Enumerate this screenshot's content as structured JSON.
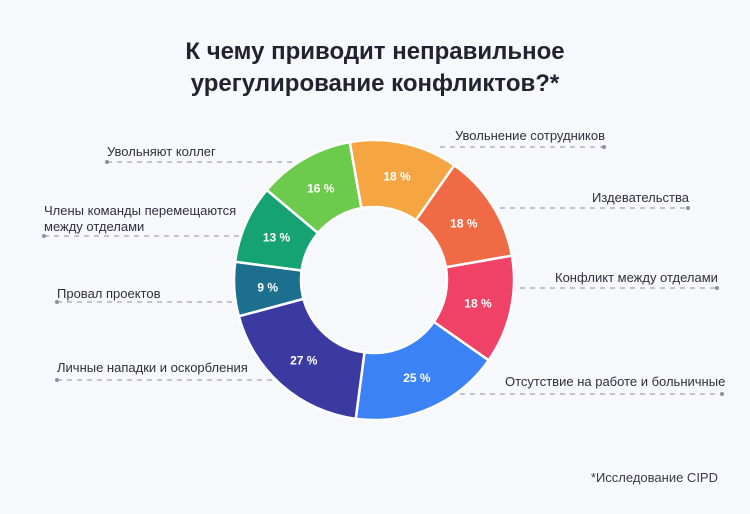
{
  "title_line1": "К чему приводит неправильное",
  "title_line2": "урегулирование конфликтов?*",
  "footnote": "*Исследование CIPD",
  "chart_data": {
    "type": "pie",
    "donut": true,
    "title": "К чему приводит неправильное урегулирование конфликтов?*",
    "slices": [
      {
        "label": "Увольнение сотрудников",
        "value": 18,
        "display": "18 %",
        "color": "#f5a542"
      },
      {
        "label": "Издевательства",
        "value": 18,
        "display": "18 %",
        "color": "#f06a45"
      },
      {
        "label": "Конфликт между отделами",
        "value": 18,
        "display": "18 %",
        "color": "#ef4266"
      },
      {
        "label": "Отсутствие на работе и больничные",
        "value": 25,
        "display": "25 %",
        "color": "#3b82f6"
      },
      {
        "label": "Личные нападки и оскорбления",
        "value": 27,
        "display": "27 %",
        "color": "#3a3aa0"
      },
      {
        "label": "Провал проектов",
        "value": 9,
        "display": "9 %",
        "color": "#1c6f8f"
      },
      {
        "label": "Члены команды перемещаются между отделами",
        "value": 13,
        "display": "13 %",
        "color": "#16a374"
      },
      {
        "label": "Увольняют коллег",
        "value": 16,
        "display": "16 %",
        "color": "#6ccb4c"
      }
    ],
    "label_lines": {
      "Члены команды перемещаются между отделами": [
        "Члены команды перемещаются",
        "между отделами"
      ]
    }
  }
}
